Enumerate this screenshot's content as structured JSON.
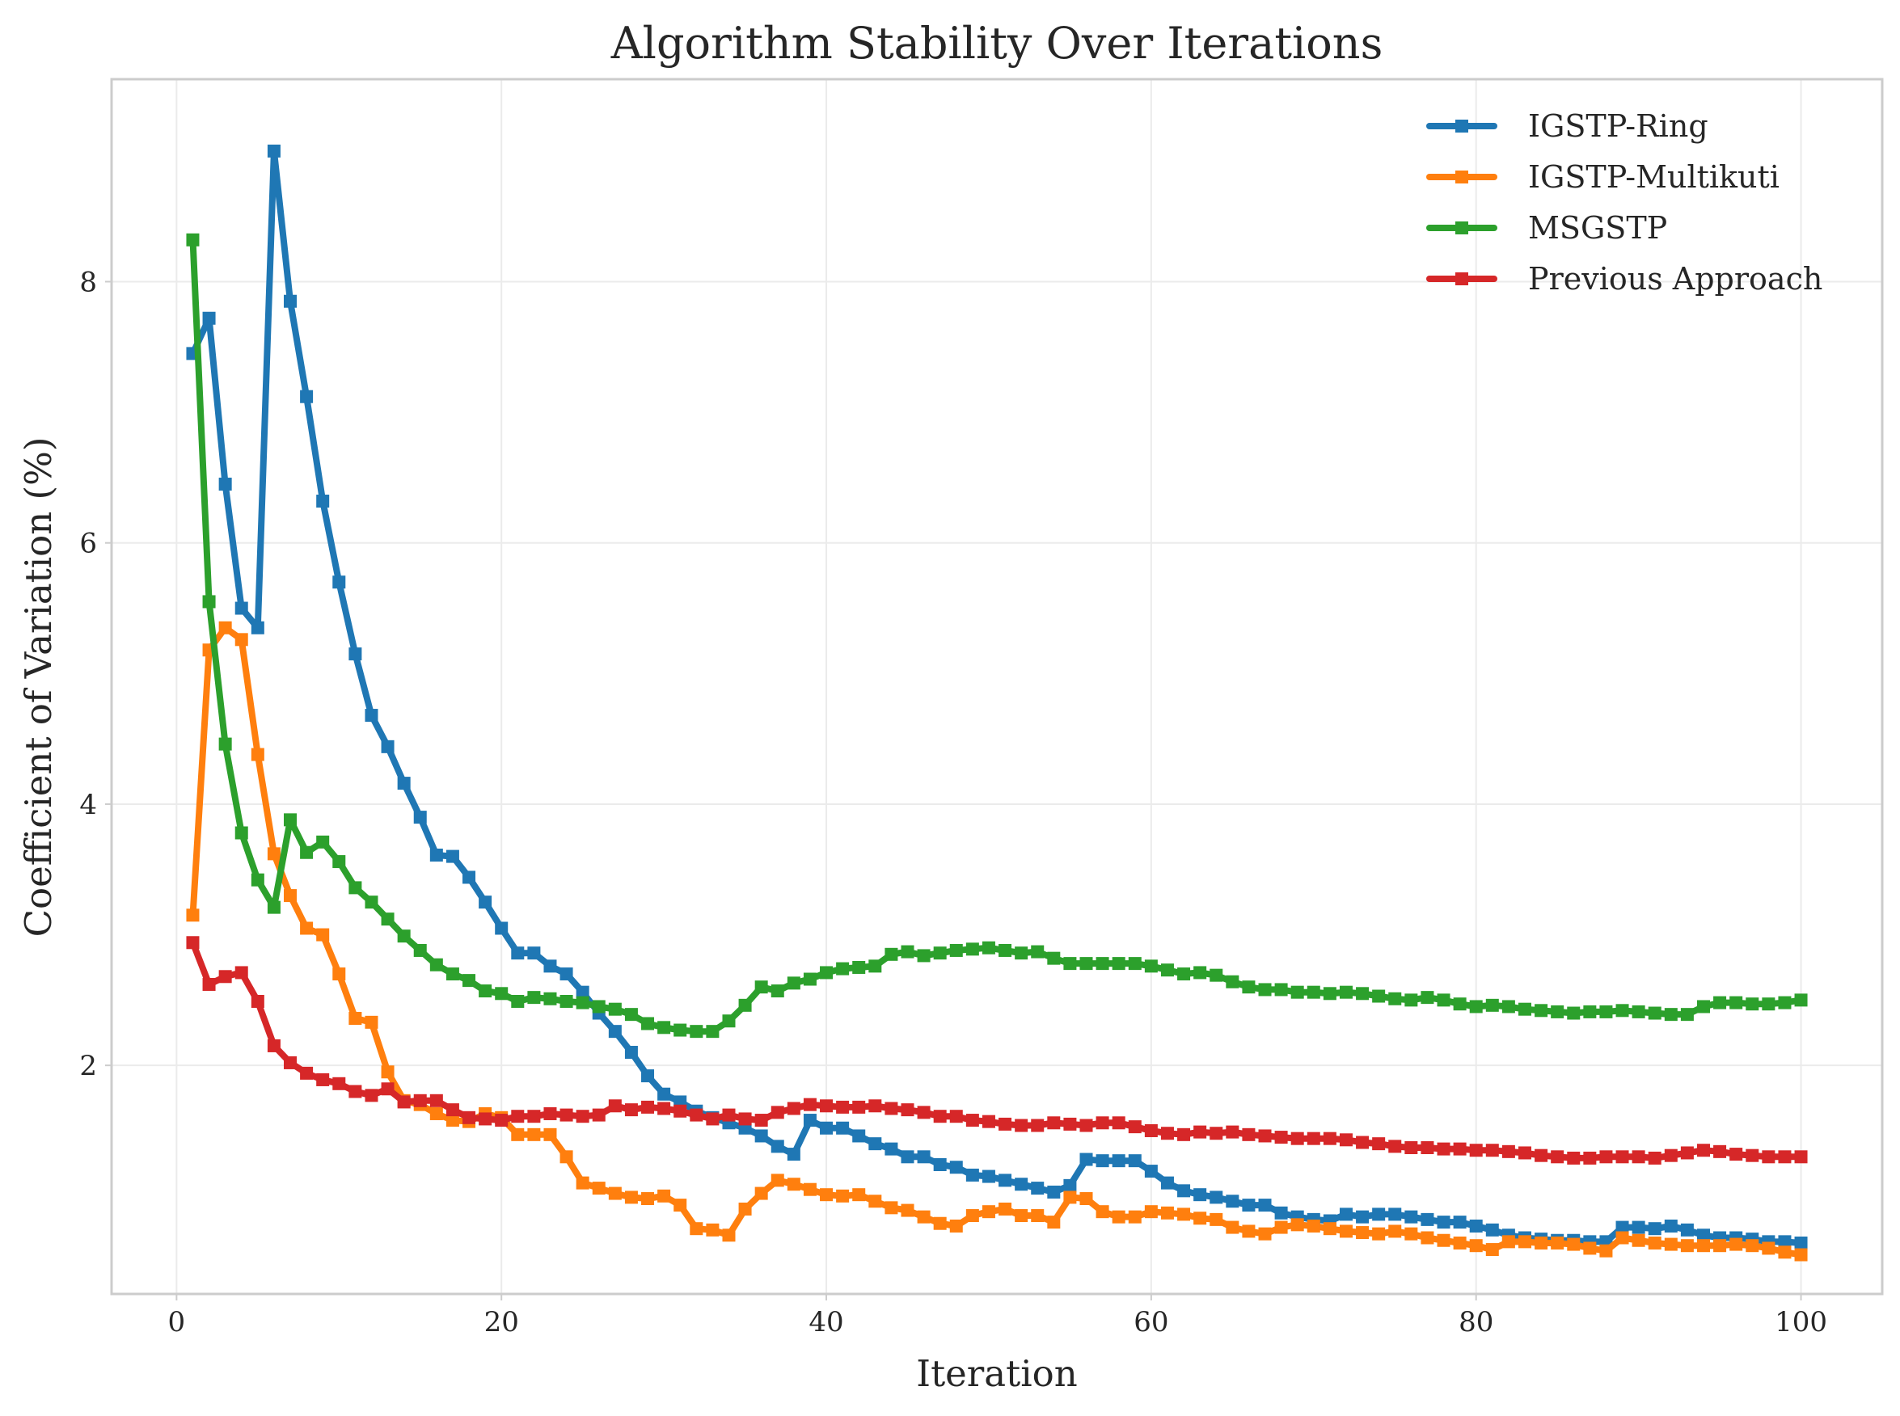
{
  "chart_data": {
    "type": "line",
    "title": "Algorithm Stability Over Iterations",
    "xlabel": "Iteration",
    "ylabel": "Coefficient of Variation (%)",
    "xlim": [
      -4,
      105
    ],
    "ylim": [
      0.25,
      9.55
    ],
    "xticks": [
      0,
      20,
      40,
      60,
      80,
      100
    ],
    "yticks": [
      2,
      4,
      6,
      8
    ],
    "grid": true,
    "legend_position": "top-right",
    "marker": "square",
    "series": [
      {
        "name": "IGSTP-Ring",
        "color": "#1f77b4",
        "x": [
          1,
          2,
          3,
          4,
          5,
          6,
          7,
          8,
          9,
          10,
          11,
          12,
          13,
          14,
          15,
          16,
          17,
          18,
          19,
          20,
          21,
          22,
          23,
          24,
          25,
          26,
          27,
          28,
          29,
          30,
          31,
          32,
          33,
          34,
          35,
          36,
          37,
          38,
          39,
          40,
          41,
          42,
          43,
          44,
          45,
          46,
          47,
          48,
          49,
          50,
          51,
          52,
          53,
          54,
          55,
          56,
          57,
          58,
          59,
          60,
          61,
          62,
          63,
          64,
          65,
          66,
          67,
          68,
          69,
          70,
          71,
          72,
          73,
          74,
          75,
          76,
          77,
          78,
          79,
          80,
          81,
          82,
          83,
          84,
          85,
          86,
          87,
          88,
          89,
          90,
          91,
          92,
          93,
          94,
          95,
          96,
          97,
          98,
          99,
          100
        ],
        "values": [
          7.45,
          7.72,
          6.45,
          5.5,
          5.35,
          9.0,
          7.85,
          7.12,
          6.32,
          5.7,
          5.15,
          4.68,
          4.44,
          4.16,
          3.9,
          3.61,
          3.6,
          3.44,
          3.25,
          3.05,
          2.86,
          2.86,
          2.76,
          2.7,
          2.56,
          2.4,
          2.26,
          2.1,
          1.92,
          1.78,
          1.72,
          1.65,
          1.6,
          1.56,
          1.52,
          1.46,
          1.38,
          1.32,
          1.58,
          1.52,
          1.52,
          1.46,
          1.4,
          1.36,
          1.3,
          1.3,
          1.24,
          1.22,
          1.16,
          1.15,
          1.12,
          1.09,
          1.06,
          1.03,
          1.08,
          1.28,
          1.27,
          1.27,
          1.27,
          1.19,
          1.1,
          1.04,
          1.01,
          0.99,
          0.96,
          0.93,
          0.93,
          0.87,
          0.84,
          0.82,
          0.81,
          0.86,
          0.84,
          0.86,
          0.86,
          0.84,
          0.82,
          0.8,
          0.8,
          0.77,
          0.74,
          0.7,
          0.68,
          0.67,
          0.66,
          0.66,
          0.65,
          0.65,
          0.76,
          0.76,
          0.75,
          0.77,
          0.74,
          0.7,
          0.68,
          0.68,
          0.67,
          0.65,
          0.65,
          0.64
        ]
      },
      {
        "name": "IGSTP-Multikuti",
        "color": "#ff7f0e",
        "x": [
          1,
          2,
          3,
          4,
          5,
          6,
          7,
          8,
          9,
          10,
          11,
          12,
          13,
          14,
          15,
          16,
          17,
          18,
          19,
          20,
          21,
          22,
          23,
          24,
          25,
          26,
          27,
          28,
          29,
          30,
          31,
          32,
          33,
          34,
          35,
          36,
          37,
          38,
          39,
          40,
          41,
          42,
          43,
          44,
          45,
          46,
          47,
          48,
          49,
          50,
          51,
          52,
          53,
          54,
          55,
          56,
          57,
          58,
          59,
          60,
          61,
          62,
          63,
          64,
          65,
          66,
          67,
          68,
          69,
          70,
          71,
          72,
          73,
          74,
          75,
          76,
          77,
          78,
          79,
          80,
          81,
          82,
          83,
          84,
          85,
          86,
          87,
          88,
          89,
          90,
          91,
          92,
          93,
          94,
          95,
          96,
          97,
          98,
          99,
          100
        ],
        "values": [
          3.15,
          5.18,
          5.35,
          5.26,
          4.38,
          3.62,
          3.3,
          3.05,
          3.0,
          2.7,
          2.36,
          2.33,
          1.95,
          1.73,
          1.7,
          1.63,
          1.58,
          1.57,
          1.63,
          1.6,
          1.47,
          1.47,
          1.47,
          1.3,
          1.1,
          1.06,
          1.02,
          0.99,
          0.98,
          1.0,
          0.93,
          0.75,
          0.74,
          0.7,
          0.9,
          1.02,
          1.12,
          1.09,
          1.05,
          1.01,
          1.0,
          1.01,
          0.96,
          0.91,
          0.89,
          0.84,
          0.79,
          0.77,
          0.85,
          0.88,
          0.9,
          0.85,
          0.85,
          0.8,
          0.99,
          0.98,
          0.88,
          0.84,
          0.84,
          0.88,
          0.87,
          0.86,
          0.83,
          0.82,
          0.76,
          0.73,
          0.71,
          0.76,
          0.78,
          0.77,
          0.75,
          0.73,
          0.72,
          0.71,
          0.73,
          0.71,
          0.68,
          0.66,
          0.64,
          0.62,
          0.59,
          0.65,
          0.65,
          0.64,
          0.64,
          0.63,
          0.6,
          0.58,
          0.68,
          0.66,
          0.64,
          0.63,
          0.62,
          0.62,
          0.62,
          0.63,
          0.62,
          0.6,
          0.57,
          0.55
        ]
      },
      {
        "name": "MSGSTP",
        "color": "#2ca02c",
        "x": [
          1,
          2,
          3,
          4,
          5,
          6,
          7,
          8,
          9,
          10,
          11,
          12,
          13,
          14,
          15,
          16,
          17,
          18,
          19,
          20,
          21,
          22,
          23,
          24,
          25,
          26,
          27,
          28,
          29,
          30,
          31,
          32,
          33,
          34,
          35,
          36,
          37,
          38,
          39,
          40,
          41,
          42,
          43,
          44,
          45,
          46,
          47,
          48,
          49,
          50,
          51,
          52,
          53,
          54,
          55,
          56,
          57,
          58,
          59,
          60,
          61,
          62,
          63,
          64,
          65,
          66,
          67,
          68,
          69,
          70,
          71,
          72,
          73,
          74,
          75,
          76,
          77,
          78,
          79,
          80,
          81,
          82,
          83,
          84,
          85,
          86,
          87,
          88,
          89,
          90,
          91,
          92,
          93,
          94,
          95,
          96,
          97,
          98,
          99,
          100
        ],
        "values": [
          8.32,
          5.55,
          4.46,
          3.78,
          3.42,
          3.21,
          3.88,
          3.63,
          3.71,
          3.56,
          3.36,
          3.25,
          3.12,
          2.99,
          2.88,
          2.77,
          2.7,
          2.65,
          2.57,
          2.55,
          2.49,
          2.52,
          2.51,
          2.49,
          2.48,
          2.45,
          2.43,
          2.39,
          2.32,
          2.29,
          2.27,
          2.26,
          2.26,
          2.34,
          2.46,
          2.6,
          2.57,
          2.63,
          2.66,
          2.71,
          2.74,
          2.75,
          2.76,
          2.85,
          2.87,
          2.84,
          2.86,
          2.88,
          2.89,
          2.9,
          2.88,
          2.86,
          2.87,
          2.82,
          2.78,
          2.78,
          2.78,
          2.78,
          2.78,
          2.76,
          2.73,
          2.7,
          2.71,
          2.69,
          2.64,
          2.6,
          2.58,
          2.58,
          2.56,
          2.56,
          2.55,
          2.56,
          2.55,
          2.53,
          2.51,
          2.5,
          2.52,
          2.5,
          2.47,
          2.45,
          2.46,
          2.45,
          2.43,
          2.42,
          2.41,
          2.4,
          2.41,
          2.41,
          2.42,
          2.41,
          2.4,
          2.39,
          2.39,
          2.45,
          2.48,
          2.48,
          2.47,
          2.47,
          2.48,
          2.5
        ]
      },
      {
        "name": "Previous Approach",
        "color": "#d62728",
        "x": [
          1,
          2,
          3,
          4,
          5,
          6,
          7,
          8,
          9,
          10,
          11,
          12,
          13,
          14,
          15,
          16,
          17,
          18,
          19,
          20,
          21,
          22,
          23,
          24,
          25,
          26,
          27,
          28,
          29,
          30,
          31,
          32,
          33,
          34,
          35,
          36,
          37,
          38,
          39,
          40,
          41,
          42,
          43,
          44,
          45,
          46,
          47,
          48,
          49,
          50,
          51,
          52,
          53,
          54,
          55,
          56,
          57,
          58,
          59,
          60,
          61,
          62,
          63,
          64,
          65,
          66,
          67,
          68,
          69,
          70,
          71,
          72,
          73,
          74,
          75,
          76,
          77,
          78,
          79,
          80,
          81,
          82,
          83,
          84,
          85,
          86,
          87,
          88,
          89,
          90,
          91,
          92,
          93,
          94,
          95,
          96,
          97,
          98,
          99,
          100
        ],
        "values": [
          2.94,
          2.62,
          2.68,
          2.71,
          2.49,
          2.15,
          2.02,
          1.94,
          1.89,
          1.86,
          1.8,
          1.77,
          1.82,
          1.72,
          1.73,
          1.73,
          1.66,
          1.6,
          1.59,
          1.58,
          1.61,
          1.61,
          1.63,
          1.62,
          1.61,
          1.62,
          1.69,
          1.66,
          1.68,
          1.67,
          1.65,
          1.62,
          1.59,
          1.62,
          1.59,
          1.58,
          1.64,
          1.67,
          1.7,
          1.69,
          1.68,
          1.68,
          1.69,
          1.67,
          1.66,
          1.64,
          1.61,
          1.61,
          1.58,
          1.57,
          1.55,
          1.54,
          1.54,
          1.56,
          1.55,
          1.54,
          1.56,
          1.56,
          1.53,
          1.5,
          1.48,
          1.47,
          1.49,
          1.48,
          1.49,
          1.47,
          1.46,
          1.45,
          1.44,
          1.44,
          1.44,
          1.43,
          1.41,
          1.4,
          1.38,
          1.37,
          1.37,
          1.36,
          1.36,
          1.35,
          1.35,
          1.34,
          1.33,
          1.31,
          1.3,
          1.29,
          1.29,
          1.3,
          1.3,
          1.3,
          1.29,
          1.31,
          1.33,
          1.35,
          1.34,
          1.32,
          1.31,
          1.3,
          1.3,
          1.3
        ]
      }
    ]
  }
}
